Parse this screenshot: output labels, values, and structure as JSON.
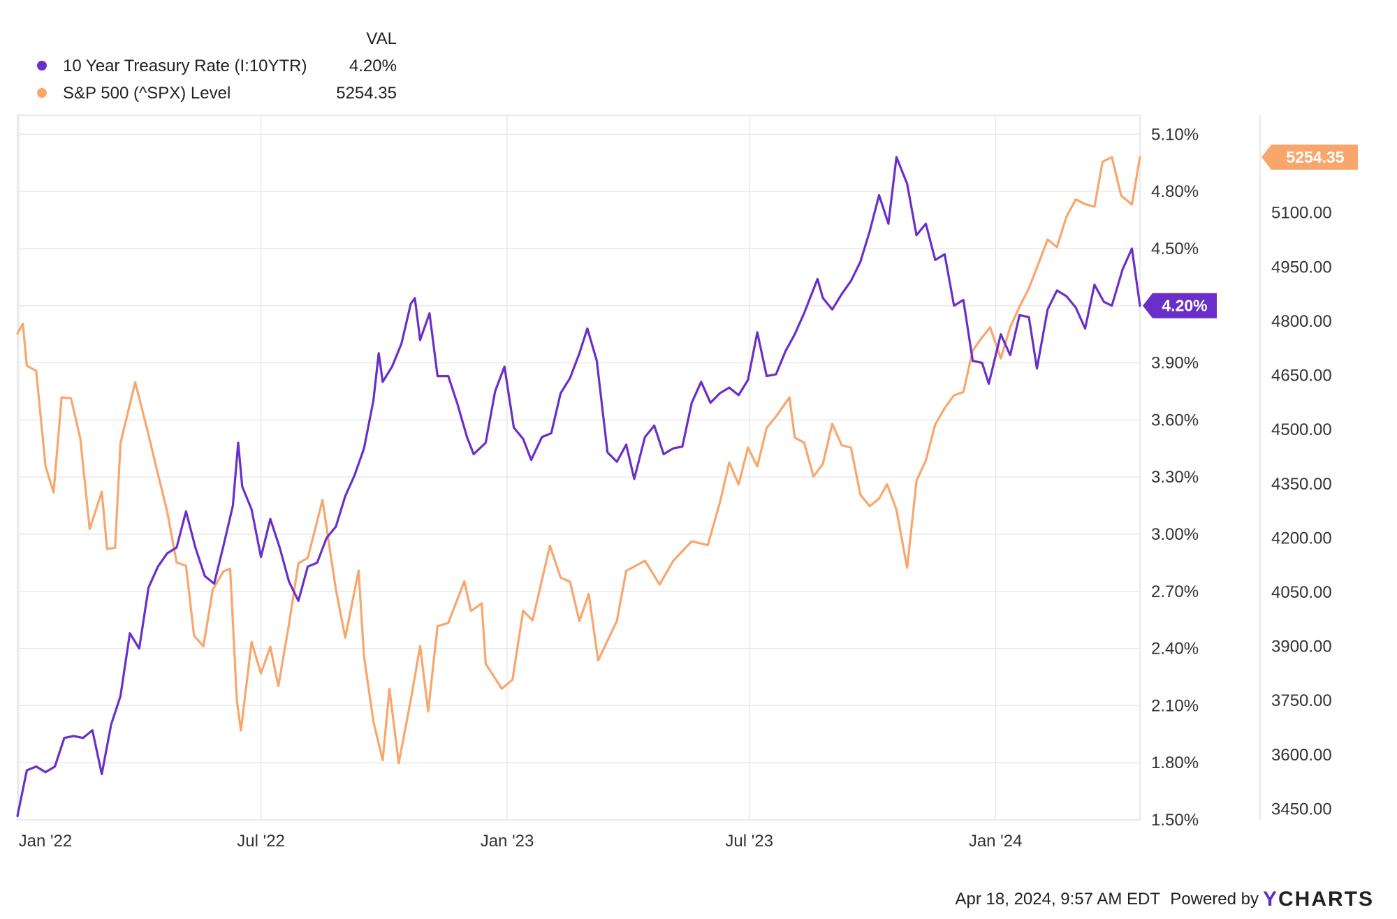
{
  "legend": {
    "header": "VAL",
    "items": [
      {
        "label": "10 Year Treasury Rate (I:10YTR)",
        "value": "4.20%",
        "color": "#6a2fc9"
      },
      {
        "label": "S&P 500 (^SPX) Level",
        "value": "5254.35",
        "color": "#f9a66c"
      }
    ]
  },
  "footer": {
    "timestamp": "Apr 18, 2024, 9:57 AM EDT",
    "powered_by": "Powered by",
    "brand_y": "Y",
    "brand_rest": "CHARTS"
  },
  "chart_data": {
    "type": "line",
    "x_tick_labels": [
      "Jan '22",
      "Jul '22",
      "Jan '23",
      "Jul '23",
      "Jan '24"
    ],
    "x_tick_dates": [
      "2022-01-01",
      "2022-07-01",
      "2023-01-01",
      "2023-07-01",
      "2024-01-01"
    ],
    "x_range": [
      "2021-12-31",
      "2024-04-18"
    ],
    "left_axis": {
      "range": [
        1.5,
        5.2
      ],
      "ticks": [
        1.5,
        1.8,
        2.1,
        2.4,
        2.7,
        3.0,
        3.3,
        3.6,
        3.9,
        4.2,
        4.5,
        4.8,
        5.1
      ],
      "tick_labels": [
        "1.50%",
        "1.80%",
        "2.10%",
        "2.40%",
        "2.70%",
        "3.00%",
        "3.30%",
        "3.60%",
        "3.90%",
        "4.20%",
        "4.50%",
        "4.80%",
        "5.10%"
      ]
    },
    "right_axis": {
      "range": [
        3420,
        5370
      ],
      "ticks": [
        3450,
        3600,
        3750,
        3900,
        4050,
        4200,
        4350,
        4500,
        4650,
        4800,
        4950,
        5100
      ],
      "tick_labels": [
        "3450.00",
        "3600.00",
        "3750.00",
        "3900.00",
        "4050.00",
        "4200.00",
        "4350.00",
        "4500.00",
        "4650.00",
        "4800.00",
        "4950.00",
        "5100.00"
      ]
    },
    "grid": true,
    "legend_position": "top-left",
    "series": [
      {
        "name": "10 Year Treasury Rate (I:10YTR)",
        "axis": "left",
        "color": "#6a2fc9",
        "last_value_label": "4.20%",
        "points": [
          [
            "2021-12-31",
            1.52
          ],
          [
            "2022-01-07",
            1.76
          ],
          [
            "2022-01-14",
            1.78
          ],
          [
            "2022-01-21",
            1.75
          ],
          [
            "2022-01-28",
            1.78
          ],
          [
            "2022-02-04",
            1.93
          ],
          [
            "2022-02-11",
            1.94
          ],
          [
            "2022-02-18",
            1.93
          ],
          [
            "2022-02-25",
            1.97
          ],
          [
            "2022-03-04",
            1.74
          ],
          [
            "2022-03-11",
            2.0
          ],
          [
            "2022-03-18",
            2.15
          ],
          [
            "2022-03-25",
            2.48
          ],
          [
            "2022-04-01",
            2.4
          ],
          [
            "2022-04-08",
            2.72
          ],
          [
            "2022-04-15",
            2.83
          ],
          [
            "2022-04-22",
            2.9
          ],
          [
            "2022-04-29",
            2.93
          ],
          [
            "2022-05-06",
            3.12
          ],
          [
            "2022-05-13",
            2.93
          ],
          [
            "2022-05-20",
            2.78
          ],
          [
            "2022-05-27",
            2.74
          ],
          [
            "2022-06-03",
            2.94
          ],
          [
            "2022-06-10",
            3.15
          ],
          [
            "2022-06-14",
            3.48
          ],
          [
            "2022-06-17",
            3.25
          ],
          [
            "2022-06-24",
            3.13
          ],
          [
            "2022-07-01",
            2.88
          ],
          [
            "2022-07-08",
            3.08
          ],
          [
            "2022-07-15",
            2.93
          ],
          [
            "2022-07-22",
            2.75
          ],
          [
            "2022-07-29",
            2.65
          ],
          [
            "2022-08-05",
            2.83
          ],
          [
            "2022-08-12",
            2.85
          ],
          [
            "2022-08-19",
            2.98
          ],
          [
            "2022-08-26",
            3.04
          ],
          [
            "2022-09-02",
            3.2
          ],
          [
            "2022-09-09",
            3.31
          ],
          [
            "2022-09-16",
            3.45
          ],
          [
            "2022-09-23",
            3.7
          ],
          [
            "2022-09-27",
            3.95
          ],
          [
            "2022-09-30",
            3.8
          ],
          [
            "2022-10-07",
            3.88
          ],
          [
            "2022-10-14",
            4.0
          ],
          [
            "2022-10-21",
            4.21
          ],
          [
            "2022-10-24",
            4.24
          ],
          [
            "2022-10-28",
            4.02
          ],
          [
            "2022-11-04",
            4.16
          ],
          [
            "2022-11-10",
            3.83
          ],
          [
            "2022-11-18",
            3.83
          ],
          [
            "2022-11-25",
            3.68
          ],
          [
            "2022-12-02",
            3.51
          ],
          [
            "2022-12-07",
            3.42
          ],
          [
            "2022-12-16",
            3.48
          ],
          [
            "2022-12-23",
            3.75
          ],
          [
            "2022-12-30",
            3.88
          ],
          [
            "2023-01-06",
            3.56
          ],
          [
            "2023-01-13",
            3.5
          ],
          [
            "2023-01-19",
            3.39
          ],
          [
            "2023-01-27",
            3.51
          ],
          [
            "2023-02-03",
            3.53
          ],
          [
            "2023-02-10",
            3.74
          ],
          [
            "2023-02-17",
            3.82
          ],
          [
            "2023-02-24",
            3.95
          ],
          [
            "2023-03-02",
            4.08
          ],
          [
            "2023-03-09",
            3.91
          ],
          [
            "2023-03-17",
            3.43
          ],
          [
            "2023-03-24",
            3.38
          ],
          [
            "2023-03-31",
            3.47
          ],
          [
            "2023-04-06",
            3.29
          ],
          [
            "2023-04-14",
            3.51
          ],
          [
            "2023-04-21",
            3.57
          ],
          [
            "2023-04-28",
            3.42
          ],
          [
            "2023-05-05",
            3.45
          ],
          [
            "2023-05-12",
            3.46
          ],
          [
            "2023-05-19",
            3.69
          ],
          [
            "2023-05-26",
            3.8
          ],
          [
            "2023-06-02",
            3.69
          ],
          [
            "2023-06-09",
            3.74
          ],
          [
            "2023-06-16",
            3.77
          ],
          [
            "2023-06-23",
            3.73
          ],
          [
            "2023-06-30",
            3.81
          ],
          [
            "2023-07-07",
            4.06
          ],
          [
            "2023-07-14",
            3.83
          ],
          [
            "2023-07-21",
            3.84
          ],
          [
            "2023-07-28",
            3.96
          ],
          [
            "2023-08-04",
            4.05
          ],
          [
            "2023-08-11",
            4.16
          ],
          [
            "2023-08-21",
            4.34
          ],
          [
            "2023-08-25",
            4.24
          ],
          [
            "2023-09-01",
            4.18
          ],
          [
            "2023-09-08",
            4.26
          ],
          [
            "2023-09-15",
            4.33
          ],
          [
            "2023-09-22",
            4.43
          ],
          [
            "2023-09-29",
            4.59
          ],
          [
            "2023-10-06",
            4.78
          ],
          [
            "2023-10-13",
            4.63
          ],
          [
            "2023-10-19",
            4.98
          ],
          [
            "2023-10-27",
            4.84
          ],
          [
            "2023-11-03",
            4.57
          ],
          [
            "2023-11-10",
            4.63
          ],
          [
            "2023-11-17",
            4.44
          ],
          [
            "2023-11-24",
            4.47
          ],
          [
            "2023-12-01",
            4.2
          ],
          [
            "2023-12-08",
            4.23
          ],
          [
            "2023-12-15",
            3.91
          ],
          [
            "2023-12-22",
            3.9
          ],
          [
            "2023-12-27",
            3.79
          ],
          [
            "2024-01-05",
            4.05
          ],
          [
            "2024-01-12",
            3.94
          ],
          [
            "2024-01-19",
            4.15
          ],
          [
            "2024-01-26",
            4.14
          ],
          [
            "2024-02-01",
            3.87
          ],
          [
            "2024-02-09",
            4.18
          ],
          [
            "2024-02-16",
            4.28
          ],
          [
            "2024-02-23",
            4.25
          ],
          [
            "2024-03-01",
            4.19
          ],
          [
            "2024-03-08",
            4.08
          ],
          [
            "2024-03-15",
            4.31
          ],
          [
            "2024-03-22",
            4.22
          ],
          [
            "2024-03-28",
            4.2
          ],
          [
            "2024-04-05",
            4.39
          ],
          [
            "2024-04-12",
            4.5
          ],
          [
            "2024-04-18",
            4.2
          ]
        ]
      },
      {
        "name": "S&P 500 (^SPX) Level",
        "axis": "right",
        "color": "#f9a66c",
        "last_value_label": "5254.35",
        "points": [
          [
            "2021-12-31",
            4766
          ],
          [
            "2022-01-04",
            4793
          ],
          [
            "2022-01-07",
            4677
          ],
          [
            "2022-01-14",
            4662
          ],
          [
            "2022-01-21",
            4398
          ],
          [
            "2022-01-27",
            4326
          ],
          [
            "2022-02-02",
            4589
          ],
          [
            "2022-02-09",
            4587
          ],
          [
            "2022-02-16",
            4475
          ],
          [
            "2022-02-23",
            4225
          ],
          [
            "2022-03-04",
            4328
          ],
          [
            "2022-03-08",
            4170
          ],
          [
            "2022-03-14",
            4173
          ],
          [
            "2022-03-18",
            4463
          ],
          [
            "2022-03-29",
            4631
          ],
          [
            "2022-04-07",
            4500
          ],
          [
            "2022-04-14",
            4392
          ],
          [
            "2022-04-22",
            4272
          ],
          [
            "2022-04-29",
            4132
          ],
          [
            "2022-05-06",
            4123
          ],
          [
            "2022-05-12",
            3930
          ],
          [
            "2022-05-19",
            3900
          ],
          [
            "2022-05-26",
            4057
          ],
          [
            "2022-06-03",
            4108
          ],
          [
            "2022-06-08",
            4115
          ],
          [
            "2022-06-13",
            3750
          ],
          [
            "2022-06-16",
            3667
          ],
          [
            "2022-06-24",
            3912
          ],
          [
            "2022-07-01",
            3825
          ],
          [
            "2022-07-08",
            3899
          ],
          [
            "2022-07-14",
            3790
          ],
          [
            "2022-07-22",
            3962
          ],
          [
            "2022-07-29",
            4130
          ],
          [
            "2022-08-05",
            4145
          ],
          [
            "2022-08-16",
            4305
          ],
          [
            "2022-08-26",
            4057
          ],
          [
            "2022-09-02",
            3924
          ],
          [
            "2022-09-12",
            4110
          ],
          [
            "2022-09-16",
            3873
          ],
          [
            "2022-09-23",
            3693
          ],
          [
            "2022-09-30",
            3585
          ],
          [
            "2022-10-05",
            3783
          ],
          [
            "2022-10-12",
            3577
          ],
          [
            "2022-10-21",
            3752
          ],
          [
            "2022-10-28",
            3901
          ],
          [
            "2022-11-03",
            3720
          ],
          [
            "2022-11-10",
            3956
          ],
          [
            "2022-11-18",
            3965
          ],
          [
            "2022-11-30",
            4080
          ],
          [
            "2022-12-05",
            3998
          ],
          [
            "2022-12-13",
            4019
          ],
          [
            "2022-12-16",
            3852
          ],
          [
            "2022-12-28",
            3783
          ],
          [
            "2023-01-05",
            3808
          ],
          [
            "2023-01-13",
            3999
          ],
          [
            "2023-01-20",
            3972
          ],
          [
            "2023-02-02",
            4179
          ],
          [
            "2023-02-10",
            4090
          ],
          [
            "2023-02-17",
            4079
          ],
          [
            "2023-02-24",
            3970
          ],
          [
            "2023-03-03",
            4045
          ],
          [
            "2023-03-10",
            3861
          ],
          [
            "2023-03-17",
            3916
          ],
          [
            "2023-03-24",
            3970
          ],
          [
            "2023-03-31",
            4109
          ],
          [
            "2023-04-14",
            4137
          ],
          [
            "2023-04-25",
            4071
          ],
          [
            "2023-05-05",
            4136
          ],
          [
            "2023-05-19",
            4191
          ],
          [
            "2023-05-31",
            4180
          ],
          [
            "2023-06-09",
            4298
          ],
          [
            "2023-06-16",
            4409
          ],
          [
            "2023-06-23",
            4348
          ],
          [
            "2023-06-30",
            4450
          ],
          [
            "2023-07-07",
            4398
          ],
          [
            "2023-07-14",
            4505
          ],
          [
            "2023-07-21",
            4536
          ],
          [
            "2023-07-31",
            4589
          ],
          [
            "2023-08-04",
            4478
          ],
          [
            "2023-08-11",
            4464
          ],
          [
            "2023-08-18",
            4370
          ],
          [
            "2023-08-25",
            4405
          ],
          [
            "2023-09-01",
            4516
          ],
          [
            "2023-09-08",
            4457
          ],
          [
            "2023-09-15",
            4450
          ],
          [
            "2023-09-22",
            4320
          ],
          [
            "2023-09-29",
            4288
          ],
          [
            "2023-10-06",
            4309
          ],
          [
            "2023-10-12",
            4349
          ],
          [
            "2023-10-19",
            4278
          ],
          [
            "2023-10-27",
            4117
          ],
          [
            "2023-11-03",
            4358
          ],
          [
            "2023-11-10",
            4415
          ],
          [
            "2023-11-17",
            4514
          ],
          [
            "2023-11-24",
            4559
          ],
          [
            "2023-12-01",
            4595
          ],
          [
            "2023-12-08",
            4604
          ],
          [
            "2023-12-15",
            4719
          ],
          [
            "2023-12-22",
            4755
          ],
          [
            "2023-12-28",
            4783
          ],
          [
            "2024-01-05",
            4697
          ],
          [
            "2024-01-12",
            4783
          ],
          [
            "2024-01-19",
            4840
          ],
          [
            "2024-01-26",
            4891
          ],
          [
            "2024-02-02",
            4958
          ],
          [
            "2024-02-09",
            5026
          ],
          [
            "2024-02-16",
            5005
          ],
          [
            "2024-02-23",
            5089
          ],
          [
            "2024-03-01",
            5137
          ],
          [
            "2024-03-08",
            5124
          ],
          [
            "2024-03-15",
            5117
          ],
          [
            "2024-03-21",
            5241
          ],
          [
            "2024-03-28",
            5254
          ],
          [
            "2024-04-04",
            5147
          ],
          [
            "2024-04-12",
            5123
          ],
          [
            "2024-04-18",
            5254
          ]
        ]
      }
    ]
  }
}
